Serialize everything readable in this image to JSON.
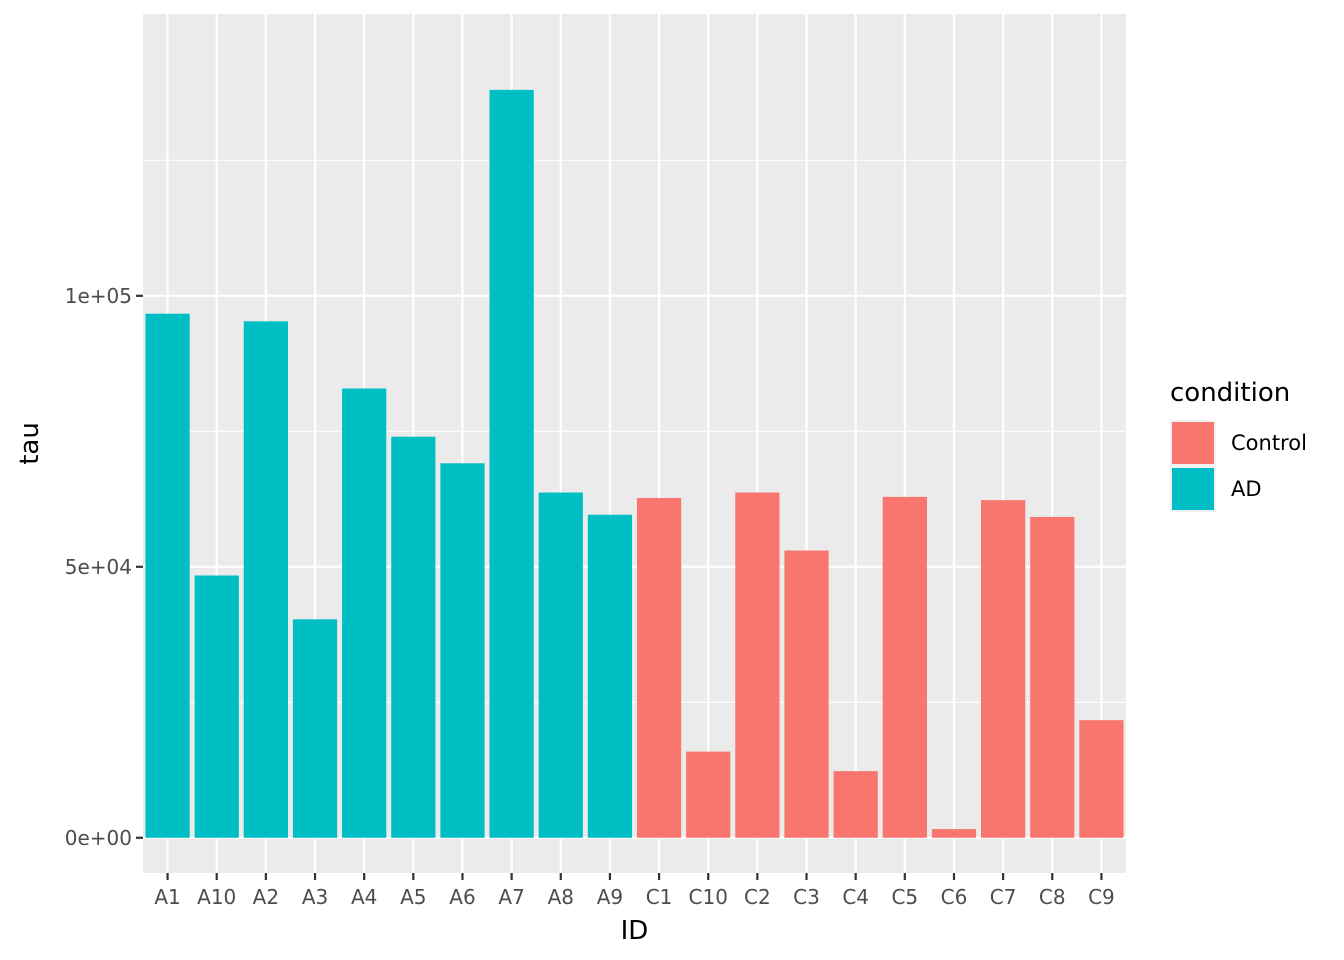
{
  "chart_data": {
    "type": "bar",
    "title": "",
    "xlabel": "ID",
    "ylabel": "tau",
    "ylim": [
      -6500,
      152000
    ],
    "yticks": [
      {
        "value": 0,
        "label": "0e+00"
      },
      {
        "value": 50000,
        "label": "5e+04"
      },
      {
        "value": 100000,
        "label": "1e+05"
      }
    ],
    "y_minor_ticks": [
      25000,
      75000,
      125000
    ],
    "grid": true,
    "panel_background": "#ebebeb",
    "grid_color": "#ffffff",
    "legend": {
      "title": "condition",
      "position": "right",
      "entries": [
        {
          "label": "Control",
          "color": "#F8766D"
        },
        {
          "label": "AD",
          "color": "#00BFC4"
        }
      ]
    },
    "categories": [
      "A1",
      "A10",
      "A2",
      "A3",
      "A4",
      "A5",
      "A6",
      "A7",
      "A8",
      "A9",
      "C1",
      "C10",
      "C2",
      "C3",
      "C4",
      "C5",
      "C6",
      "C7",
      "C8",
      "C9"
    ],
    "values": [
      96700,
      48400,
      95300,
      40300,
      82900,
      74000,
      69100,
      138000,
      63700,
      59600,
      62700,
      15900,
      63700,
      53000,
      12300,
      62900,
      1600,
      62300,
      59200,
      21700
    ],
    "condition": [
      "AD",
      "AD",
      "AD",
      "AD",
      "AD",
      "AD",
      "AD",
      "AD",
      "AD",
      "AD",
      "Control",
      "Control",
      "Control",
      "Control",
      "Control",
      "Control",
      "Control",
      "Control",
      "Control",
      "Control"
    ]
  }
}
